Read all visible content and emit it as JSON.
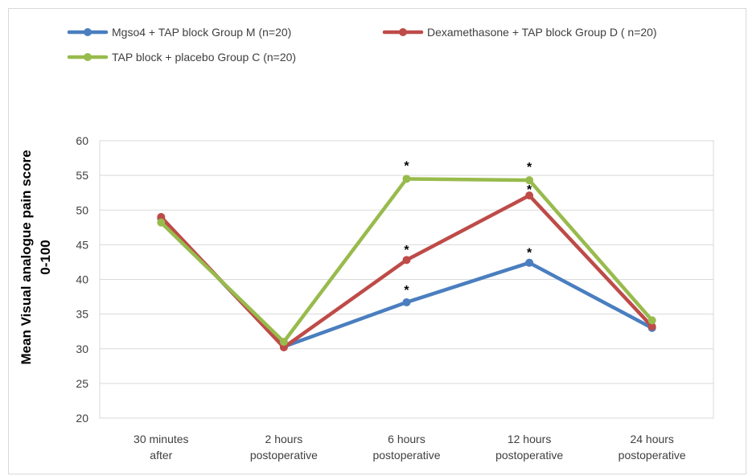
{
  "chart_data": {
    "type": "line",
    "title": "",
    "xlabel": "",
    "ylabel": "Mean Visual analogue pain score 0-100",
    "ylabel_lines": [
      "Mean Visual analogue pain score",
      "0-100"
    ],
    "ylim": [
      20,
      60
    ],
    "yticks": [
      20,
      25,
      30,
      35,
      40,
      45,
      50,
      55,
      60
    ],
    "ytick_labels": [
      "20",
      "25",
      "30",
      "35",
      "40",
      "45",
      "50",
      "55",
      "60"
    ],
    "grid": true,
    "legend": "top-left",
    "categories": [
      [
        "30 minutes",
        "after"
      ],
      [
        "2 hours",
        "postoperative"
      ],
      [
        "6 hours",
        "postoperative"
      ],
      [
        "12 hours",
        "postoperative"
      ],
      [
        "24 hours",
        "postoperative"
      ]
    ],
    "series": [
      {
        "name": "Mgso4 + TAP block Group M (n=20)",
        "color": "#4a7ebf",
        "values": [
          48.8,
          30.3,
          36.7,
          42.4,
          33.0
        ]
      },
      {
        "name": "Dexamethasone + TAP block Group D ( n=20)",
        "color": "#be4b48",
        "values": [
          49.0,
          30.2,
          42.8,
          52.1,
          33.2
        ]
      },
      {
        "name": "TAP block + placebo Group C (n=20)",
        "color": "#98bb4d",
        "values": [
          48.2,
          31.0,
          54.5,
          54.3,
          34.1
        ]
      }
    ],
    "annotations": [
      {
        "text": "*",
        "x": 2,
        "y": 38.8
      },
      {
        "text": "*",
        "x": 2,
        "y": 44.6
      },
      {
        "text": "*",
        "x": 2,
        "y": 56.7
      },
      {
        "text": "*",
        "x": 3,
        "y": 44.2
      },
      {
        "text": "*",
        "x": 3,
        "y": 53.3
      },
      {
        "text": "*",
        "x": 3,
        "y": 56.5
      }
    ]
  }
}
